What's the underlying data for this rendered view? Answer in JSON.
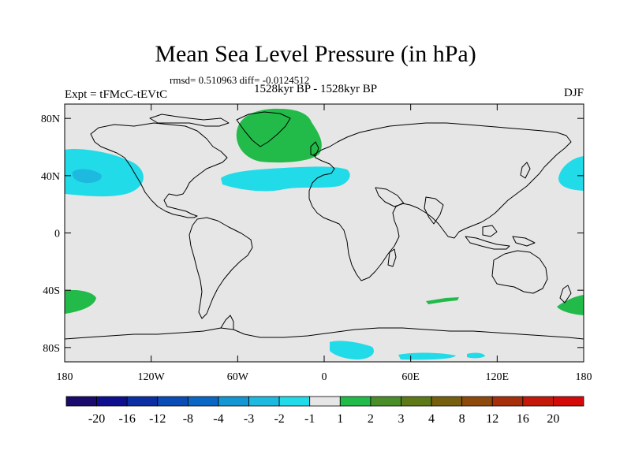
{
  "title": "Mean Sea Level Pressure (in hPa)",
  "stats": "rmsd= 0.510963 diff= -0.0124512",
  "left_label": "Expt = tFMcC-tEVtC",
  "center_label": "1528kyr BP - 1528kyr BP",
  "right_label": "DJF",
  "lat_ticks": [
    "80N",
    "40N",
    "0",
    "40S",
    "80S"
  ],
  "lon_ticks": [
    "180",
    "120W",
    "60W",
    "0",
    "60E",
    "120E",
    "180"
  ],
  "colorbar": {
    "labels": [
      "-20",
      "-16",
      "-12",
      "-8",
      "-4",
      "-3",
      "-2",
      "-1",
      "1",
      "2",
      "3",
      "4",
      "8",
      "12",
      "16",
      "20"
    ],
    "colors": [
      "#1a0a6b",
      "#0d0f8f",
      "#0b2fa3",
      "#0a4cb5",
      "#0a66c4",
      "#1496d2",
      "#1eb9de",
      "#22dbe8",
      "#e6e6e6",
      "#22bb4a",
      "#4a8e2a",
      "#5e7a18",
      "#76600f",
      "#8e4a0c",
      "#a6300b",
      "#c4180b",
      "#d40a0a"
    ]
  },
  "anomaly_colors": {
    "positive_weak": "#22bb4a",
    "negative_weak": "#22dbe8",
    "negative_mid": "#1eb9de",
    "background": "#e6e6e6"
  }
}
